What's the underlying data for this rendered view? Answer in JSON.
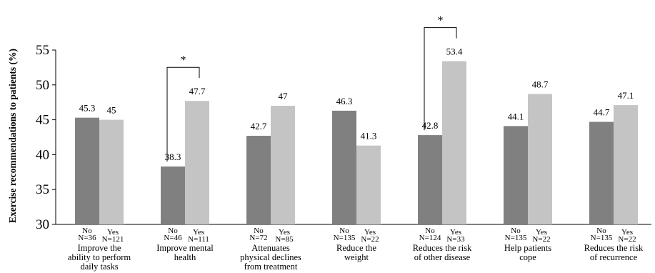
{
  "chart_data": {
    "type": "bar",
    "ylabel": "Exercise recommendations to patients (%)",
    "ylim": [
      30,
      55
    ],
    "yticks": [
      "30",
      "35",
      "40",
      "45",
      "50",
      "55"
    ],
    "grid": false,
    "colors": {
      "No": "#808080",
      "Yes": "#c4c4c4"
    },
    "groups": [
      {
        "category": [
          "Improve the",
          "ability to perform",
          "daily tasks"
        ],
        "no": {
          "value": 45.3,
          "label": "45.3",
          "tag": "No",
          "n": "N=36"
        },
        "yes": {
          "value": 45,
          "label": "45",
          "tag": "Yes",
          "n": "N=121"
        },
        "significant": false
      },
      {
        "category": [
          "Improve mental",
          "health"
        ],
        "no": {
          "value": 38.3,
          "label": "38.3",
          "tag": "No",
          "n": "N=46"
        },
        "yes": {
          "value": 47.7,
          "label": "47.7",
          "tag": "Yes",
          "n": "N=111"
        },
        "significant": true,
        "sig_label": "*"
      },
      {
        "category": [
          "Attenuates",
          "physical declines",
          "from treatment"
        ],
        "no": {
          "value": 42.7,
          "label": "42.7",
          "tag": "No",
          "n": "N=72"
        },
        "yes": {
          "value": 47,
          "label": "47",
          "tag": "Yes",
          "n": "N=85"
        },
        "significant": false
      },
      {
        "category": [
          "Reduce the",
          "weight"
        ],
        "no": {
          "value": 46.3,
          "label": "46.3",
          "tag": "No",
          "n": "N=135"
        },
        "yes": {
          "value": 41.3,
          "label": "41.3",
          "tag": "Yes",
          "n": "N=22"
        },
        "significant": false
      },
      {
        "category": [
          "Reduces the risk",
          "of other disease"
        ],
        "no": {
          "value": 42.8,
          "label": "42.8",
          "tag": "No",
          "n": "N=124"
        },
        "yes": {
          "value": 53.4,
          "label": "53.4",
          "tag": "Yes",
          "n": "N=33"
        },
        "significant": true,
        "sig_label": "*"
      },
      {
        "category": [
          "Help patients",
          "cope"
        ],
        "no": {
          "value": 44.1,
          "label": "44.1",
          "tag": "No",
          "n": "N=135"
        },
        "yes": {
          "value": 48.7,
          "label": "48.7",
          "tag": "Yes",
          "n": "N=22"
        },
        "significant": false
      },
      {
        "category": [
          "Reduces the risk",
          "of recurrence"
        ],
        "no": {
          "value": 44.7,
          "label": "44.7",
          "tag": "No",
          "n": "N=135"
        },
        "yes": {
          "value": 47.1,
          "label": "47.1",
          "tag": "Yes",
          "n": "N=22"
        },
        "significant": false
      }
    ]
  }
}
